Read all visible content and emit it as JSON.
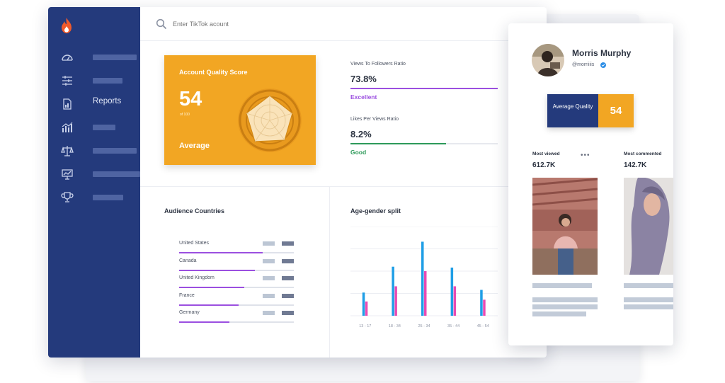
{
  "search": {
    "placeholder": "Enter TikTok acount"
  },
  "sidebar": {
    "items": [
      {
        "icon": "dashboard-icon",
        "label": ""
      },
      {
        "icon": "sliders-icon",
        "label": ""
      },
      {
        "icon": "report-document-icon",
        "label": "Reports"
      },
      {
        "icon": "bar-chart-icon",
        "label": ""
      },
      {
        "icon": "scales-icon",
        "label": ""
      },
      {
        "icon": "presentation-icon",
        "label": ""
      },
      {
        "icon": "trophy-icon",
        "label": ""
      }
    ]
  },
  "score_card": {
    "title": "Account Quality Score",
    "score": "54",
    "out_of": "of 100",
    "rating": "Average"
  },
  "ratios": [
    {
      "title": "Views To Followers Ratio",
      "value": "73.8%",
      "status": "Excellent",
      "color": "#9b4fe0",
      "fill": 1.0
    },
    {
      "title": "Likes Per Views Ratio",
      "value": "8.2%",
      "status": "Good",
      "color": "#2e9a5a",
      "fill": 0.65
    }
  ],
  "audience": {
    "title": "Audience Countries",
    "countries": [
      {
        "name": "United States",
        "share": 0.73
      },
      {
        "name": "Canada",
        "share": 0.66
      },
      {
        "name": "United Kingdom",
        "share": 0.57
      },
      {
        "name": "France",
        "share": 0.52
      },
      {
        "name": "Germany",
        "share": 0.44
      }
    ]
  },
  "age_gender": {
    "title": "Age-gender split"
  },
  "chart_data": {
    "type": "bar",
    "categories": [
      "13 - 17",
      "18 - 34",
      "25 - 34",
      "35 - 44",
      "45 - 54"
    ],
    "series": [
      {
        "values": [
          26,
          55,
          83,
          54,
          29
        ]
      },
      {
        "values": [
          16,
          33,
          50,
          33,
          18
        ]
      }
    ],
    "colors": [
      "#1f9ee6",
      "#e84bb3"
    ],
    "ylim": [
      0,
      100
    ]
  },
  "profile": {
    "name": "Morris Murphy",
    "handle": "@morriiiis",
    "quality_label": "Average Quality",
    "quality_score": "54",
    "most_viewed_label": "Most viewed",
    "most_viewed_value": "612.7K",
    "most_commented_label": "Most commented",
    "most_commented_value": "142.7K"
  },
  "colors": {
    "sidebar": "#243a7c",
    "accent_orange": "#f2a623",
    "purple": "#9b4fe0",
    "green": "#2e9a5a"
  }
}
